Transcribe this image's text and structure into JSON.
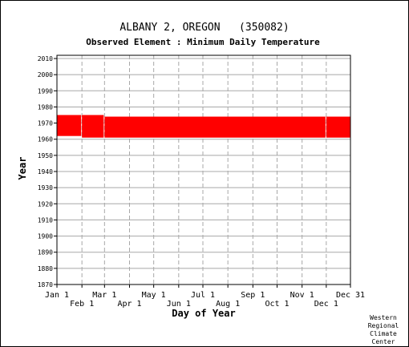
{
  "chart_data": {
    "type": "bar",
    "title": "ALBANY 2, OREGON   (350082)",
    "subtitle": "Observed Element : Minimum Daily Temperature",
    "xlabel": "Day of Year",
    "ylabel": "Year",
    "xlim": [
      1,
      365
    ],
    "ylim": [
      1870,
      2012
    ],
    "yticks": [
      1870,
      1880,
      1890,
      1900,
      1910,
      1920,
      1930,
      1940,
      1950,
      1960,
      1970,
      1980,
      1990,
      2000,
      2010
    ],
    "xticks_upper": [
      {
        "label": "Jan 1",
        "day": 1
      },
      {
        "label": "Mar 1",
        "day": 60
      },
      {
        "label": "May 1",
        "day": 121
      },
      {
        "label": "Jul 1",
        "day": 182
      },
      {
        "label": "Sep 1",
        "day": 244
      },
      {
        "label": "Nov 1",
        "day": 305
      },
      {
        "label": "Dec 31",
        "day": 365
      }
    ],
    "xticks_lower": [
      {
        "label": "Feb 1",
        "day": 32
      },
      {
        "label": "Apr 1",
        "day": 91
      },
      {
        "label": "Jun 1",
        "day": 152
      },
      {
        "label": "Aug 1",
        "day": 213
      },
      {
        "label": "Oct 1",
        "day": 274
      },
      {
        "label": "Dec 1",
        "day": 335
      }
    ],
    "grid": true,
    "series_color": "#ff0000",
    "coverage": [
      {
        "day_start": 1,
        "day_end": 31,
        "year_start": 1962,
        "year_end": 1975
      },
      {
        "day_start": 32,
        "day_end": 59,
        "year_start": 1961,
        "year_end": 1975
      },
      {
        "day_start": 60,
        "day_end": 334,
        "year_start": 1961,
        "year_end": 1974
      },
      {
        "day_start": 335,
        "day_end": 365,
        "year_start": 1961,
        "year_end": 1974
      }
    ]
  },
  "credit": [
    "Western",
    "Regional",
    "Climate",
    "Center"
  ]
}
